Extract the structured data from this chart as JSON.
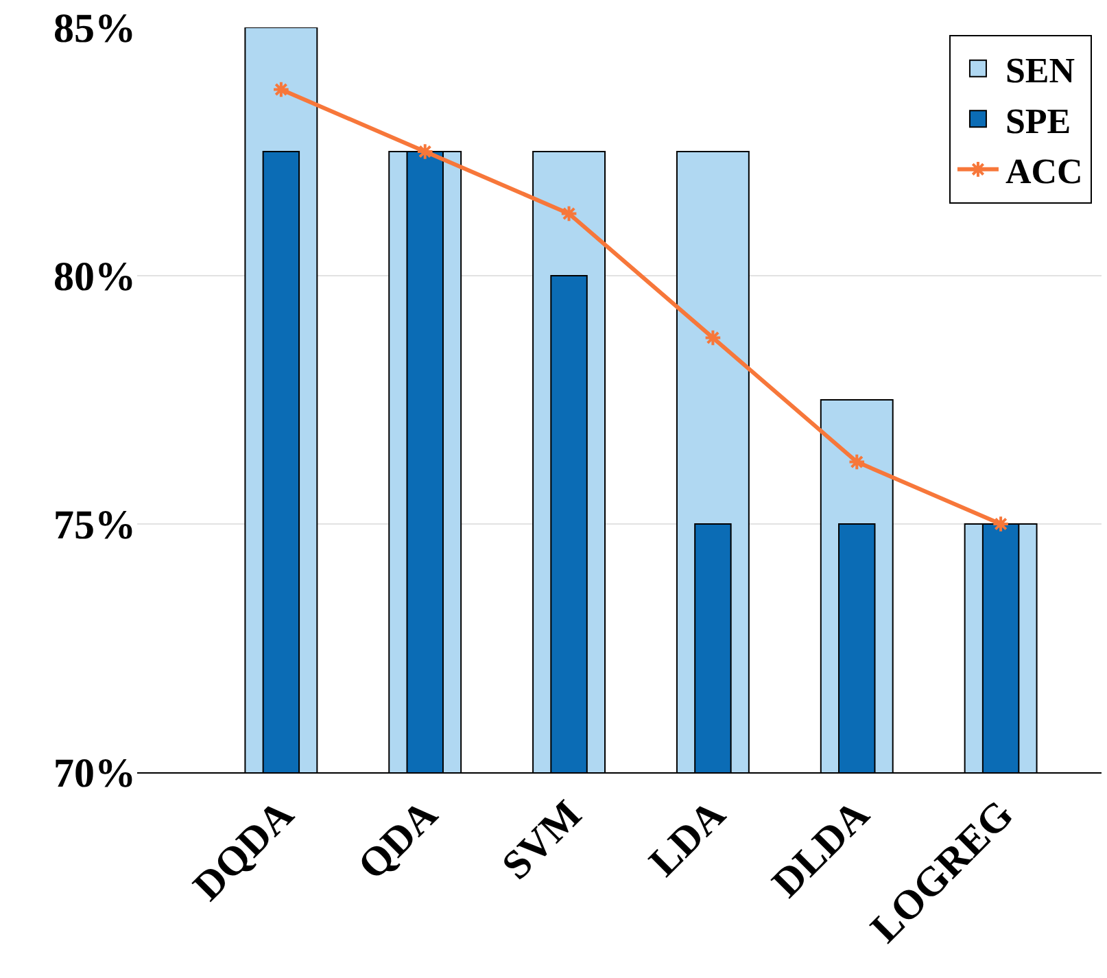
{
  "chart_data": {
    "type": "bar",
    "categories": [
      "DQDA",
      "QDA",
      "SVM",
      "LDA",
      "DLDA",
      "LOGREG"
    ],
    "series": [
      {
        "name": "SEN",
        "color": "#b0d8f2",
        "values": [
          85,
          82.5,
          82.5,
          82.5,
          77.5,
          75
        ]
      },
      {
        "name": "SPE",
        "color": "#0b6cb5",
        "values": [
          82.5,
          82.5,
          80,
          75,
          75,
          75
        ]
      },
      {
        "name": "ACC",
        "type": "line",
        "color": "#f7773a",
        "values": [
          83.75,
          82.5,
          81.25,
          78.75,
          76.25,
          75
        ]
      }
    ],
    "ylim": [
      70,
      85
    ],
    "yticks": [
      {
        "value": 70,
        "label": "70%"
      },
      {
        "value": 75,
        "label": "75%"
      },
      {
        "value": 80,
        "label": "80%"
      },
      {
        "value": 85,
        "label": "85%"
      }
    ],
    "grid": "y",
    "legend": "top right",
    "marker": "cross",
    "line_style": "solid"
  }
}
